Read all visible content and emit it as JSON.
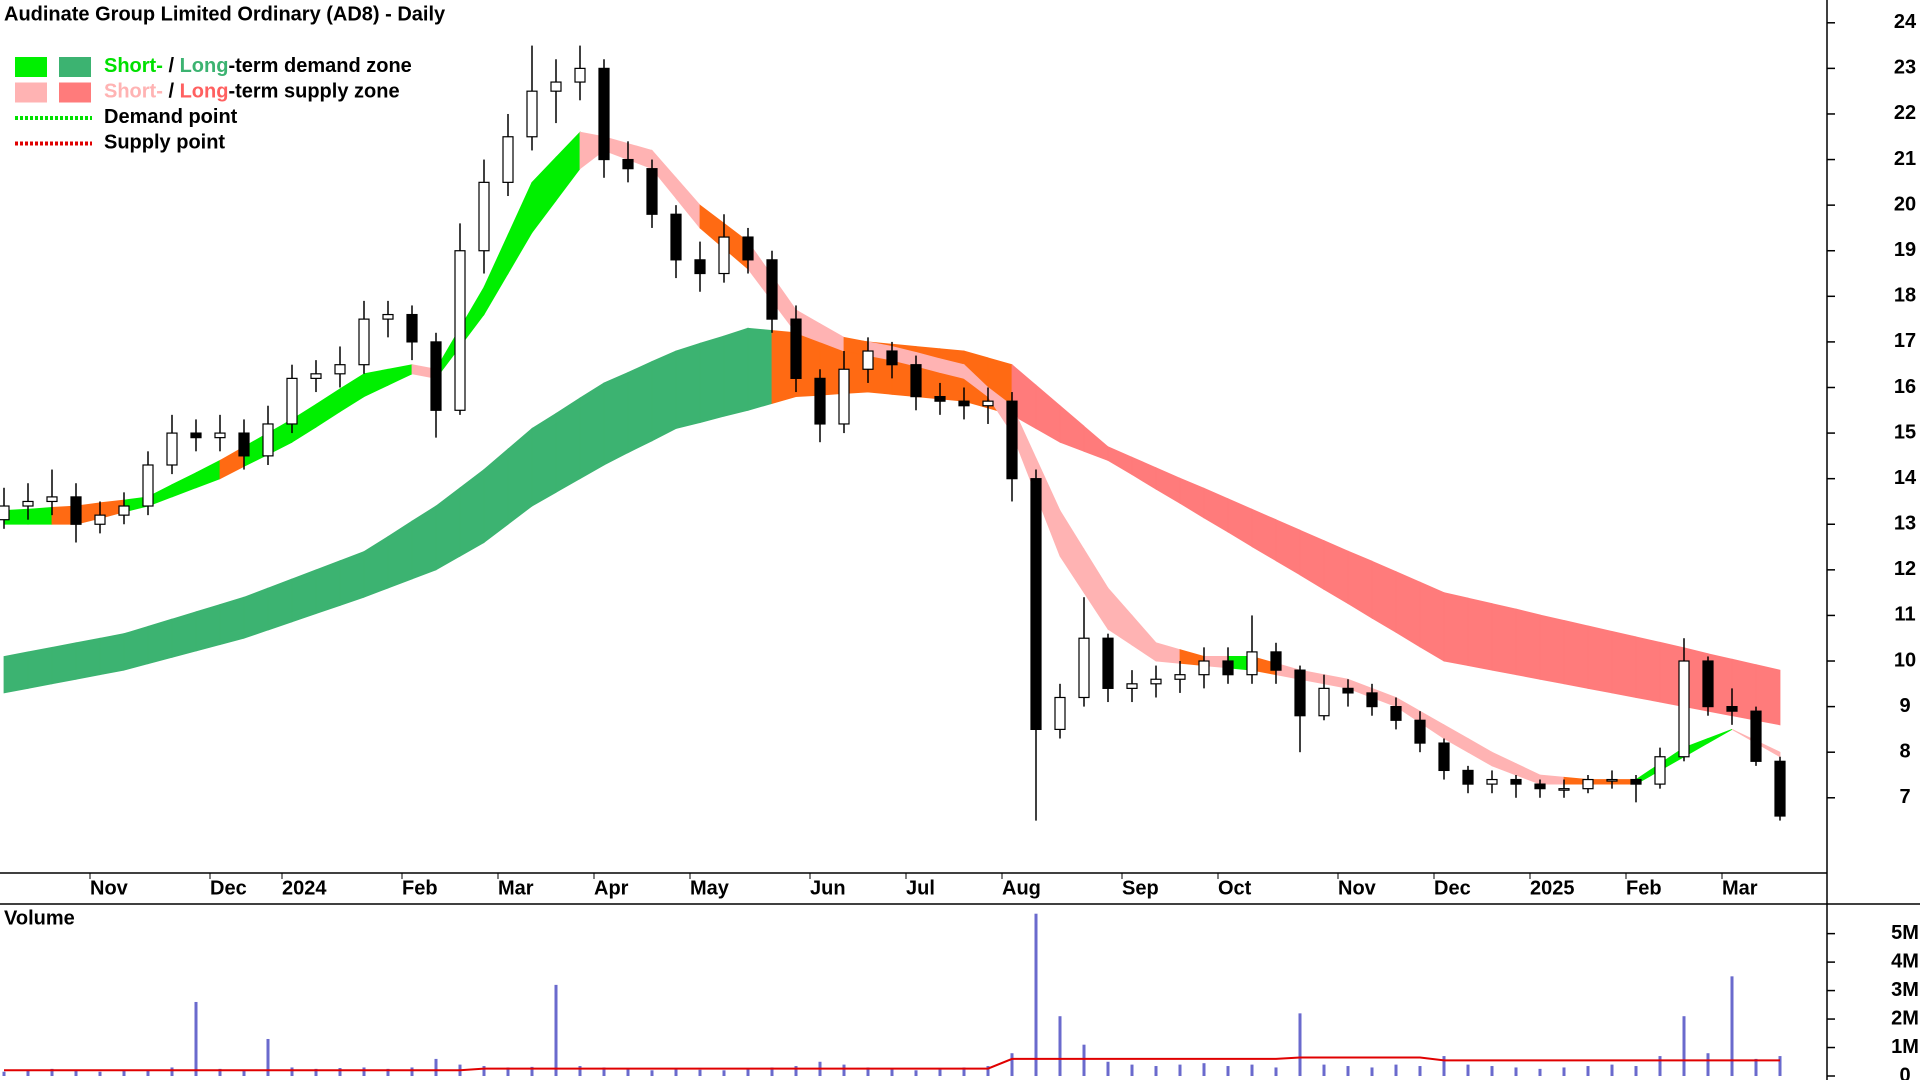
{
  "chart_data": [
    {
      "type": "candlestick",
      "title": "Audinate Group Limited Ordinary (AD8) - Daily",
      "categories": [
        null,
        null,
        null,
        null,
        "Nov",
        null,
        null,
        null,
        null,
        "Dec",
        null,
        null,
        "2024",
        null,
        null,
        null,
        null,
        "Feb",
        null,
        null,
        null,
        "Mar",
        null,
        null,
        null,
        "Apr",
        null,
        null,
        null,
        "May",
        null,
        null,
        null,
        null,
        "Jun",
        null,
        null,
        null,
        "Jul",
        null,
        null,
        null,
        "Aug",
        null,
        null,
        null,
        null,
        "Sep",
        null,
        null,
        null,
        "Oct",
        null,
        null,
        null,
        null,
        "Nov",
        null,
        null,
        null,
        "Dec",
        null,
        null,
        null,
        "2025",
        null,
        null,
        null,
        "Feb",
        null,
        null,
        null,
        "Mar",
        null,
        null
      ],
      "open": [
        13.1,
        13.4,
        13.5,
        13.6,
        13.0,
        13.2,
        13.4,
        14.3,
        15.0,
        14.9,
        15.0,
        14.5,
        15.2,
        16.2,
        16.3,
        16.5,
        17.5,
        17.6,
        17.0,
        15.5,
        19.0,
        20.5,
        21.5,
        22.5,
        22.7,
        23.0,
        21.0,
        20.8,
        19.8,
        18.8,
        18.5,
        19.3,
        18.8,
        17.5,
        16.2,
        15.2,
        16.4,
        16.8,
        16.5,
        15.8,
        15.7,
        15.6,
        15.7,
        14.0,
        8.5,
        9.2,
        10.5,
        9.4,
        9.5,
        9.6,
        9.7,
        10.0,
        9.7,
        10.2,
        9.8,
        8.8,
        9.4,
        9.3,
        9.0,
        8.7,
        8.2,
        7.6,
        7.3,
        7.4,
        7.3,
        7.2,
        7.2,
        7.4,
        7.4,
        7.3,
        7.9,
        10.0,
        9.0,
        8.9,
        7.8
      ],
      "high": [
        13.8,
        13.9,
        14.2,
        13.9,
        13.5,
        13.7,
        14.6,
        15.4,
        15.3,
        15.4,
        15.3,
        15.6,
        16.5,
        16.6,
        16.9,
        17.9,
        17.9,
        17.8,
        17.2,
        19.6,
        21.0,
        22.0,
        23.5,
        23.2,
        23.5,
        23.2,
        21.4,
        21.0,
        20.0,
        19.2,
        19.8,
        19.5,
        19.0,
        17.8,
        16.4,
        16.8,
        17.1,
        17.0,
        16.7,
        16.1,
        16.0,
        16.0,
        15.9,
        14.2,
        9.5,
        11.4,
        10.6,
        9.8,
        9.9,
        10.0,
        10.3,
        10.3,
        11.0,
        10.4,
        9.9,
        9.7,
        9.6,
        9.5,
        9.2,
        8.9,
        8.3,
        7.7,
        7.6,
        7.5,
        7.4,
        7.4,
        7.5,
        7.6,
        7.5,
        8.1,
        10.5,
        10.1,
        9.4,
        9.0,
        7.9
      ],
      "low": [
        12.9,
        13.1,
        13.2,
        12.6,
        12.8,
        13.0,
        13.2,
        14.1,
        14.6,
        14.6,
        14.2,
        14.3,
        15.0,
        15.9,
        16.0,
        16.3,
        17.1,
        16.6,
        14.9,
        15.4,
        18.5,
        20.2,
        21.2,
        21.8,
        22.3,
        20.6,
        20.5,
        19.5,
        18.4,
        18.1,
        18.3,
        18.5,
        17.2,
        15.9,
        14.8,
        15.0,
        16.1,
        16.2,
        15.5,
        15.4,
        15.3,
        15.2,
        13.5,
        6.5,
        8.3,
        9.0,
        9.1,
        9.1,
        9.2,
        9.3,
        9.4,
        9.5,
        9.5,
        9.5,
        8.0,
        8.7,
        9.0,
        8.8,
        8.5,
        8.0,
        7.4,
        7.1,
        7.1,
        7.0,
        7.0,
        7.0,
        7.1,
        7.2,
        6.9,
        7.2,
        7.8,
        8.8,
        8.6,
        7.7,
        6.5
      ],
      "close": [
        13.4,
        13.5,
        13.6,
        13.0,
        13.2,
        13.4,
        14.3,
        15.0,
        14.9,
        15.0,
        14.5,
        15.2,
        16.2,
        16.3,
        16.5,
        17.5,
        17.6,
        17.0,
        15.5,
        19.0,
        20.5,
        21.5,
        22.5,
        22.7,
        23.0,
        21.0,
        20.8,
        19.8,
        18.8,
        18.5,
        19.3,
        18.8,
        17.5,
        16.2,
        15.2,
        16.4,
        16.8,
        16.5,
        15.8,
        15.7,
        15.6,
        15.7,
        14.0,
        8.5,
        9.2,
        10.5,
        9.4,
        9.5,
        9.6,
        9.7,
        10.0,
        9.7,
        10.2,
        9.8,
        8.8,
        9.4,
        9.3,
        9.0,
        8.7,
        8.2,
        7.6,
        7.3,
        7.4,
        7.3,
        7.2,
        7.2,
        7.4,
        7.4,
        7.3,
        7.9,
        10.0,
        9.0,
        8.9,
        7.8,
        6.6
      ],
      "long_term_zone": {
        "lower": [
          9.3,
          9.4,
          9.5,
          9.6,
          9.7,
          9.8,
          9.94,
          10.08,
          10.22,
          10.36,
          10.5,
          10.68,
          10.86,
          11.04,
          11.22,
          11.4,
          11.6,
          11.8,
          12.0,
          12.3,
          12.6,
          13.0,
          13.4,
          13.7,
          14.0,
          14.3,
          14.57,
          14.83,
          15.1,
          15.23,
          15.37,
          15.5,
          15.65,
          15.8,
          15.83,
          15.87,
          15.9,
          15.85,
          15.8,
          15.75,
          15.7,
          15.55,
          15.4,
          15.1,
          14.8,
          14.6,
          14.4,
          14.09,
          13.77,
          13.46,
          13.14,
          12.83,
          12.51,
          12.2,
          11.89,
          11.57,
          11.26,
          10.94,
          10.63,
          10.31,
          10.0,
          9.9,
          9.8,
          9.7,
          9.6,
          9.5,
          9.4,
          9.3,
          9.2,
          9.1,
          9.0,
          8.9,
          8.8,
          8.7,
          8.6
        ],
        "upper": [
          10.1,
          10.2,
          10.3,
          10.4,
          10.5,
          10.6,
          10.76,
          10.92,
          11.08,
          11.24,
          11.4,
          11.6,
          11.8,
          12.0,
          12.2,
          12.4,
          12.73,
          13.07,
          13.4,
          13.8,
          14.2,
          14.65,
          15.1,
          15.43,
          15.77,
          16.1,
          16.33,
          16.57,
          16.8,
          16.97,
          17.13,
          17.3,
          17.25,
          17.2,
          17.13,
          17.07,
          17.0,
          16.95,
          16.9,
          16.85,
          16.8,
          16.65,
          16.5,
          16.05,
          15.6,
          15.15,
          14.7,
          14.47,
          14.24,
          14.01,
          13.79,
          13.56,
          13.33,
          13.1,
          12.87,
          12.64,
          12.41,
          12.19,
          11.96,
          11.73,
          11.5,
          11.38,
          11.26,
          11.14,
          11.01,
          10.89,
          10.77,
          10.65,
          10.53,
          10.41,
          10.29,
          10.16,
          10.04,
          9.92,
          9.8
        ],
        "colors": {
          "demand": "#3cb371",
          "neutral": "#ff6a13",
          "supply": "#ff7b7b"
        }
      },
      "short_term_zone": {
        "lower": [
          13.0,
          13.0,
          13.0,
          13.0,
          13.13,
          13.27,
          13.4,
          13.6,
          13.8,
          14.0,
          14.27,
          14.53,
          14.8,
          15.13,
          15.47,
          15.8,
          16.05,
          16.3,
          16.2,
          16.9,
          17.6,
          18.5,
          19.4,
          20.1,
          20.8,
          21.2,
          21.0,
          20.8,
          20.15,
          19.5,
          19.05,
          18.6,
          17.9,
          17.2,
          17.0,
          16.8,
          16.7,
          16.6,
          16.47,
          16.33,
          16.2,
          15.8,
          15.0,
          13.65,
          12.3,
          11.5,
          10.7,
          10.35,
          10.0,
          9.95,
          9.9,
          9.85,
          9.8,
          9.7,
          9.6,
          9.5,
          9.4,
          9.2,
          9.0,
          8.65,
          8.3,
          8.0,
          7.7,
          7.5,
          7.3,
          7.3,
          7.3,
          7.3,
          7.3,
          7.6,
          7.9,
          8.2,
          8.5,
          8.2,
          7.9
        ],
        "upper": [
          13.3,
          13.33,
          13.37,
          13.4,
          13.47,
          13.53,
          13.6,
          13.87,
          14.13,
          14.4,
          14.7,
          15.0,
          15.3,
          15.63,
          15.97,
          16.3,
          16.4,
          16.5,
          16.4,
          17.3,
          18.2,
          19.35,
          20.5,
          21.05,
          21.6,
          21.5,
          21.35,
          21.2,
          20.6,
          20.0,
          19.6,
          19.2,
          18.45,
          17.7,
          17.4,
          17.1,
          17.0,
          16.9,
          16.77,
          16.63,
          16.5,
          16.0,
          15.6,
          14.45,
          13.3,
          12.45,
          11.6,
          11.0,
          10.4,
          10.25,
          10.1,
          10.1,
          10.1,
          9.95,
          9.8,
          9.7,
          9.6,
          9.4,
          9.2,
          8.9,
          8.6,
          8.3,
          8.0,
          7.75,
          7.5,
          7.45,
          7.4,
          7.4,
          7.4,
          7.75,
          8.1,
          8.3,
          8.5,
          8.25,
          8.0
        ],
        "colors": {
          "demand": "#00f000",
          "neutral": "#ff6a13",
          "supply": "#ffb3b3"
        }
      },
      "ylim": [
        5.35,
        24.5
      ],
      "yticks": [
        7,
        8,
        9,
        10,
        11,
        12,
        13,
        14,
        15,
        16,
        17,
        18,
        19,
        20,
        21,
        22,
        23,
        24
      ],
      "legend": [
        {
          "swatch": "box",
          "colors": [
            "#00f000",
            "#3cb371"
          ],
          "parts": [
            {
              "text": "Short-",
              "color": "#00e000"
            },
            {
              "text": " / "
            },
            {
              "text": "Long",
              "color": "#3cb371"
            },
            {
              "text": "-term demand zone"
            }
          ]
        },
        {
          "swatch": "box",
          "colors": [
            "#ffb3b3",
            "#ff7b7b"
          ],
          "parts": [
            {
              "text": "Short-",
              "color": "#ffb3b3"
            },
            {
              "text": " / "
            },
            {
              "text": "Long",
              "color": "#ff6060"
            },
            {
              "text": "-term supply zone"
            }
          ]
        },
        {
          "swatch": "line",
          "colors": [
            "#00e000"
          ],
          "parts": [
            {
              "text": "Demand point"
            }
          ]
        },
        {
          "swatch": "line",
          "colors": [
            "#e00000"
          ],
          "parts": [
            {
              "text": "Supply point"
            }
          ]
        }
      ]
    },
    {
      "type": "bar",
      "title": "Volume",
      "title_color": "#6a6acd",
      "color": "#6a6acd",
      "values": [
        150000,
        200000,
        250000,
        180000,
        150000,
        200000,
        220000,
        300000,
        2600000,
        250000,
        200000,
        1300000,
        300000,
        250000,
        280000,
        300000,
        250000,
        300000,
        600000,
        400000,
        350000,
        300000,
        320000,
        3200000,
        350000,
        300000,
        250000,
        200000,
        250000,
        220000,
        200000,
        250000,
        300000,
        350000,
        500000,
        400000,
        300000,
        250000,
        200000,
        250000,
        300000,
        350000,
        800000,
        5700000,
        2100000,
        1100000,
        500000,
        400000,
        350000,
        400000,
        450000,
        350000,
        400000,
        300000,
        2200000,
        400000,
        350000,
        300000,
        400000,
        350000,
        700000,
        400000,
        350000,
        300000,
        250000,
        300000,
        350000,
        400000,
        350000,
        700000,
        2100000,
        800000,
        3500000,
        600000,
        700000
      ],
      "average": {
        "color": "#e00000",
        "values": [
          200000,
          200000,
          200000,
          200000,
          200000,
          200000,
          200000,
          200000,
          200000,
          200000,
          200000,
          200000,
          200000,
          200000,
          200000,
          200000,
          200000,
          200000,
          200000,
          200000,
          260000,
          260000,
          260000,
          260000,
          260000,
          260000,
          260000,
          260000,
          260000,
          260000,
          260000,
          260000,
          260000,
          260000,
          260000,
          260000,
          260000,
          260000,
          260000,
          260000,
          260000,
          260000,
          600000,
          600000,
          600000,
          600000,
          600000,
          600000,
          600000,
          600000,
          600000,
          600000,
          600000,
          600000,
          650000,
          650000,
          650000,
          650000,
          650000,
          650000,
          550000,
          550000,
          550000,
          550000,
          550000,
          550000,
          550000,
          550000,
          550000,
          550000,
          550000,
          550000,
          550000,
          550000,
          550000
        ]
      },
      "ylim": [
        0,
        5900000
      ],
      "yticks": [
        0,
        {
          "value": 1000000,
          "label": "1M"
        },
        {
          "value": 2000000,
          "label": "2M"
        },
        {
          "value": 3000000,
          "label": "3M"
        },
        {
          "value": 4000000,
          "label": "4M"
        },
        {
          "value": 5000000,
          "label": "5M"
        }
      ]
    }
  ]
}
